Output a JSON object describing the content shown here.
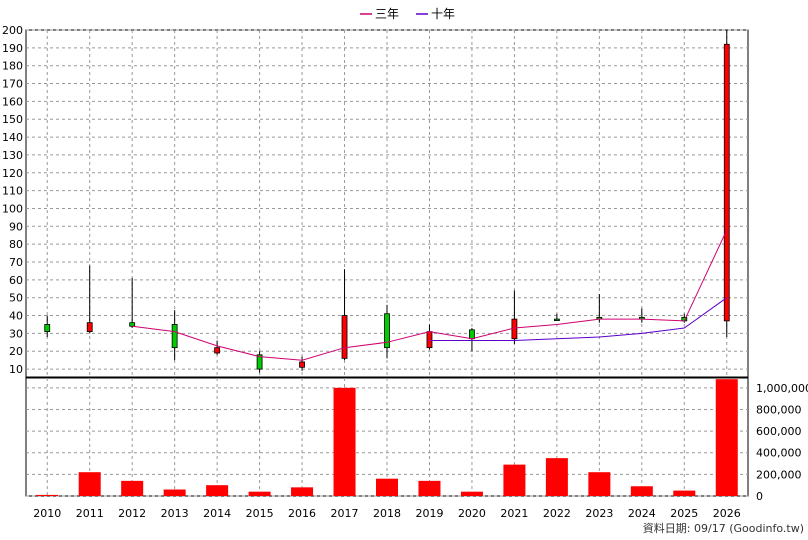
{
  "legend": [
    {
      "name": "三年",
      "color": "#d0006f"
    },
    {
      "name": "十年",
      "color": "#5a00cc"
    }
  ],
  "footer_text": "資料日期: 09/17  (Goodinfo.tw)",
  "colors": {
    "up": "#ff0000",
    "down": "#00cc00",
    "volume": "#ff0000",
    "grid": "#999999"
  },
  "chart_data": [
    {
      "type": "candlestick",
      "categories": [
        "2010",
        "2011",
        "2012",
        "2013",
        "2014",
        "2015",
        "2016",
        "2017",
        "2018",
        "2019",
        "2020",
        "2021",
        "2022",
        "2023",
        "2024",
        "2025",
        "2026"
      ],
      "ylim": [
        5,
        200
      ],
      "yticks": [
        10,
        20,
        30,
        40,
        50,
        60,
        70,
        80,
        90,
        100,
        110,
        120,
        130,
        140,
        150,
        160,
        170,
        180,
        190,
        200
      ],
      "candles": [
        {
          "year": "2010",
          "open": 31,
          "high": 40,
          "low": 28,
          "close": 35
        },
        {
          "year": "2011",
          "open": 36,
          "high": 68,
          "low": 30,
          "close": 31
        },
        {
          "year": "2012",
          "open": 34,
          "high": 61,
          "low": 33,
          "close": 36
        },
        {
          "year": "2013",
          "open": 22,
          "high": 43,
          "low": 15,
          "close": 35
        },
        {
          "year": "2014",
          "open": 22,
          "high": 26,
          "low": 18,
          "close": 19
        },
        {
          "year": "2015",
          "open": 10,
          "high": 20,
          "low": 8,
          "close": 18
        },
        {
          "year": "2016",
          "open": 14,
          "high": 17,
          "low": 9,
          "close": 11
        },
        {
          "year": "2017",
          "open": 40,
          "high": 66,
          "low": 15,
          "close": 16
        },
        {
          "year": "2018",
          "open": 22,
          "high": 46,
          "low": 16,
          "close": 41
        },
        {
          "year": "2019",
          "open": 31,
          "high": 35,
          "low": 21,
          "close": 22
        },
        {
          "year": "2020",
          "open": 27,
          "high": 33,
          "low": 20,
          "close": 32
        },
        {
          "year": "2021",
          "open": 38,
          "high": 54,
          "low": 24,
          "close": 27
        },
        {
          "year": "2022",
          "open": 38,
          "high": 41,
          "low": 37,
          "close": 38
        },
        {
          "year": "2023",
          "open": 38,
          "high": 52,
          "low": 36,
          "close": 39
        },
        {
          "year": "2024",
          "open": 38,
          "high": 44,
          "low": 36,
          "close": 39
        },
        {
          "year": "2025",
          "open": 37,
          "high": 41,
          "low": 36,
          "close": 39
        },
        {
          "year": "2026",
          "open": 192,
          "high": 200,
          "low": 28,
          "close": 37
        }
      ],
      "series": [
        {
          "name": "三年",
          "values": [
            null,
            null,
            34,
            31,
            23,
            17,
            15,
            22,
            25,
            31,
            27,
            33,
            35,
            38,
            38,
            37,
            88
          ]
        },
        {
          "name": "十年",
          "values": [
            null,
            null,
            null,
            null,
            null,
            null,
            null,
            null,
            null,
            26,
            26,
            26,
            27,
            28,
            30,
            33,
            50
          ]
        }
      ]
    },
    {
      "type": "bar",
      "categories": [
        "2010",
        "2011",
        "2012",
        "2013",
        "2014",
        "2015",
        "2016",
        "2017",
        "2018",
        "2019",
        "2020",
        "2021",
        "2022",
        "2023",
        "2024",
        "2025",
        "2026"
      ],
      "values": [
        10000,
        220000,
        140000,
        60000,
        100000,
        40000,
        80000,
        1000000,
        160000,
        140000,
        40000,
        290000,
        350000,
        220000,
        90000,
        50000,
        1080000
      ],
      "ylim": [
        0,
        1100000
      ],
      "yticks": [
        0,
        200000,
        400000,
        600000,
        800000,
        1000000
      ],
      "ytick_labels": [
        "0",
        "200,000",
        "400,000",
        "600,000",
        "800,000",
        "1,000,000"
      ]
    }
  ]
}
